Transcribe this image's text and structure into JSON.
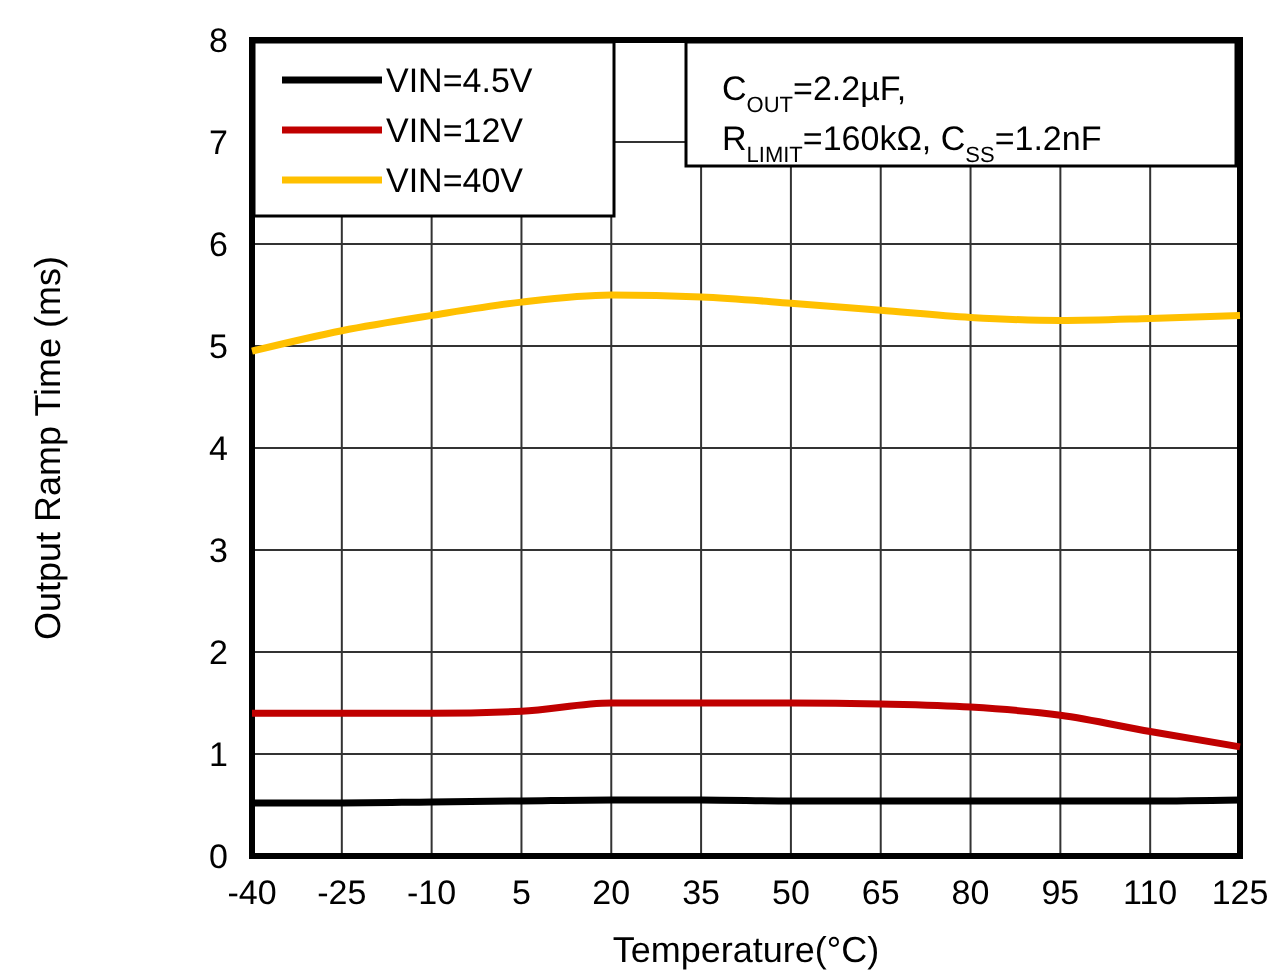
{
  "chart_data": {
    "type": "line",
    "xlabel": "Temperature(°C)",
    "ylabel": "Output Ramp Time (ms)",
    "x": [
      -40,
      -25,
      -10,
      5,
      20,
      35,
      50,
      65,
      80,
      95,
      110,
      125
    ],
    "series": [
      {
        "name": "VIN=4.5V",
        "color": "#000000",
        "values": [
          0.52,
          0.52,
          0.53,
          0.54,
          0.55,
          0.55,
          0.54,
          0.54,
          0.54,
          0.54,
          0.54,
          0.55
        ]
      },
      {
        "name": "VIN=12V",
        "color": "#c00000",
        "values": [
          1.4,
          1.4,
          1.4,
          1.42,
          1.5,
          1.5,
          1.5,
          1.49,
          1.46,
          1.38,
          1.22,
          1.07
        ]
      },
      {
        "name": "VIN=40V",
        "color": "#ffc000",
        "values": [
          4.95,
          5.15,
          5.3,
          5.43,
          5.5,
          5.48,
          5.42,
          5.35,
          5.28,
          5.25,
          5.27,
          5.3
        ]
      }
    ],
    "xlim": [
      -40,
      125
    ],
    "xticks": [
      -40,
      -25,
      -10,
      5,
      20,
      35,
      50,
      65,
      80,
      95,
      110,
      125
    ],
    "ylim": [
      0,
      8
    ],
    "yticks": [
      0,
      1,
      2,
      3,
      4,
      5,
      6,
      7,
      8
    ],
    "grid": true,
    "legend": "top left",
    "line_style": "solid",
    "annotations": [
      "C$_{OUT}$=2.2µF,",
      "R$_{LIMIT}$=160kΩ, C$_{SS}$=1.2nF"
    ]
  }
}
